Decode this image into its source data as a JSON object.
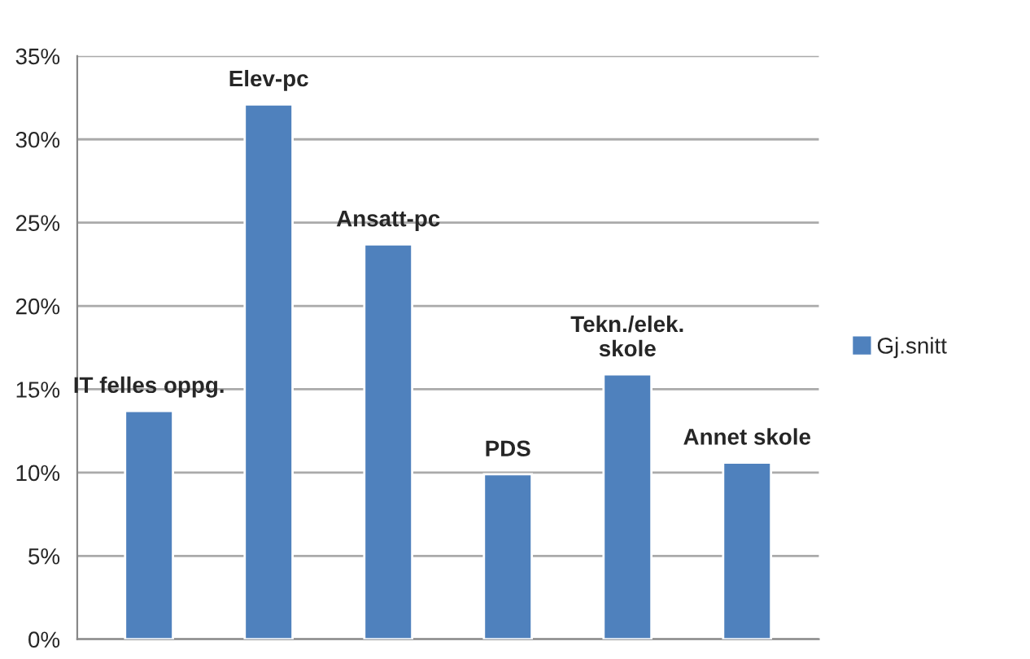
{
  "chart_data": {
    "type": "bar",
    "categories": [
      "IT felles oppg.",
      "Elev-pc",
      "Ansatt-pc",
      "PDS",
      "Tekn./elek.\nskole",
      "Annet skole"
    ],
    "series": [
      {
        "name": "Gj.snitt",
        "color": "#4f81bd",
        "values": [
          13.7,
          32.1,
          23.7,
          9.9,
          15.9,
          10.6
        ]
      }
    ],
    "ylim": [
      0,
      35
    ],
    "yticks": [
      {
        "value": 0,
        "label": "0%"
      },
      {
        "value": 5,
        "label": "5%"
      },
      {
        "value": 10,
        "label": "10%"
      },
      {
        "value": 15,
        "label": "15%"
      },
      {
        "value": 20,
        "label": "20%"
      },
      {
        "value": 25,
        "label": "25%"
      },
      {
        "value": 30,
        "label": "30%"
      },
      {
        "value": 35,
        "label": "35%"
      }
    ],
    "grid": "y",
    "legend": "right"
  }
}
